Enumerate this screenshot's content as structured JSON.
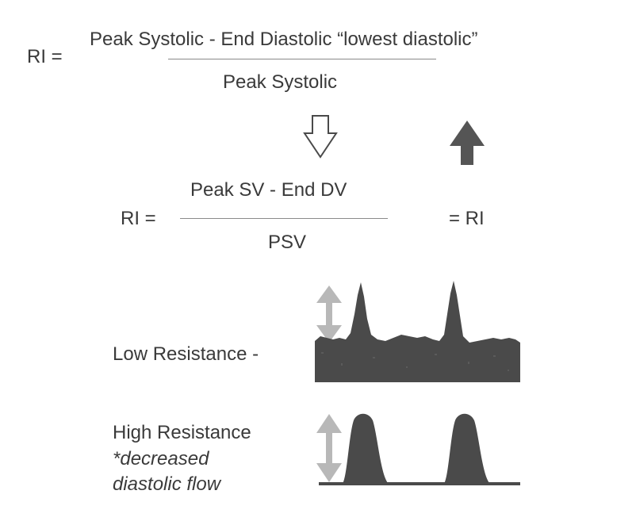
{
  "formula_general": {
    "lhs": "RI =",
    "numerator": "Peak Systolic - End Diastolic “lowest diastolic”",
    "denominator": "Peak Systolic"
  },
  "formula_abbrev": {
    "lhs": "RI =",
    "numerator": "Peak SV - End DV",
    "denominator": "PSV",
    "rhs": "= RI"
  },
  "waveforms": {
    "low_resistance_label": "Low Resistance -",
    "high_resistance_label": "High Resistance",
    "high_resistance_note_line1": "*decreased",
    "high_resistance_note_line2": "diastolic flow"
  },
  "icons": {
    "down_arrow": "hollow-down-arrow-icon",
    "up_arrow": "solid-up-arrow-icon",
    "measure_arrow": "double-headed-arrow-icon"
  },
  "colors": {
    "text": "#3a3a3a",
    "waveform_fill": "#4a4a4a",
    "measure_arrow": "#b8b8b8",
    "up_arrow": "#555555"
  }
}
